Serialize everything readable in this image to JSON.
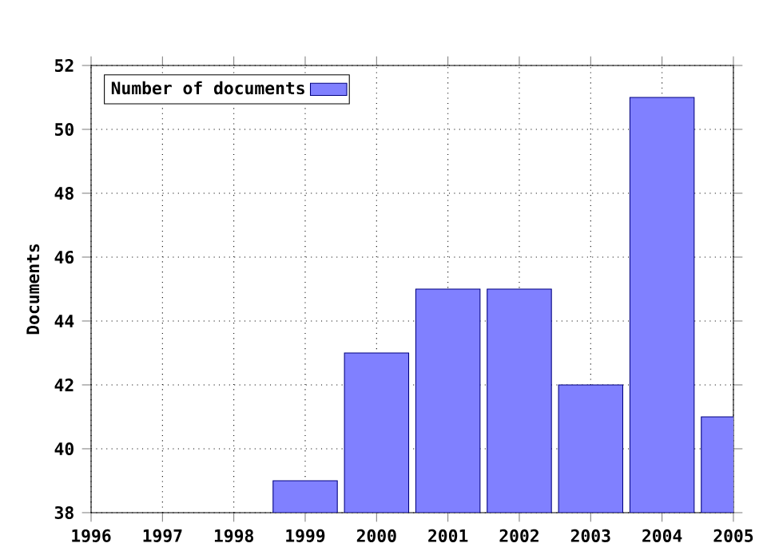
{
  "chart_data": {
    "type": "bar",
    "ylabel": "Documents",
    "x": [
      1999,
      2000,
      2001,
      2002,
      2003,
      2004,
      2005
    ],
    "series": [
      {
        "name": "Number of documents",
        "color": "#8080ff",
        "values": [
          39,
          43,
          45,
          45,
          42,
          51,
          41
        ]
      }
    ],
    "xlim": [
      1996,
      2005
    ],
    "ylim": [
      38,
      52
    ],
    "xticks": [
      1996,
      1997,
      1998,
      1999,
      2000,
      2001,
      2002,
      2003,
      2004,
      2005
    ],
    "yticks": [
      38,
      40,
      42,
      44,
      46,
      48,
      50,
      52
    ],
    "grid": true,
    "legend": "top left"
  }
}
